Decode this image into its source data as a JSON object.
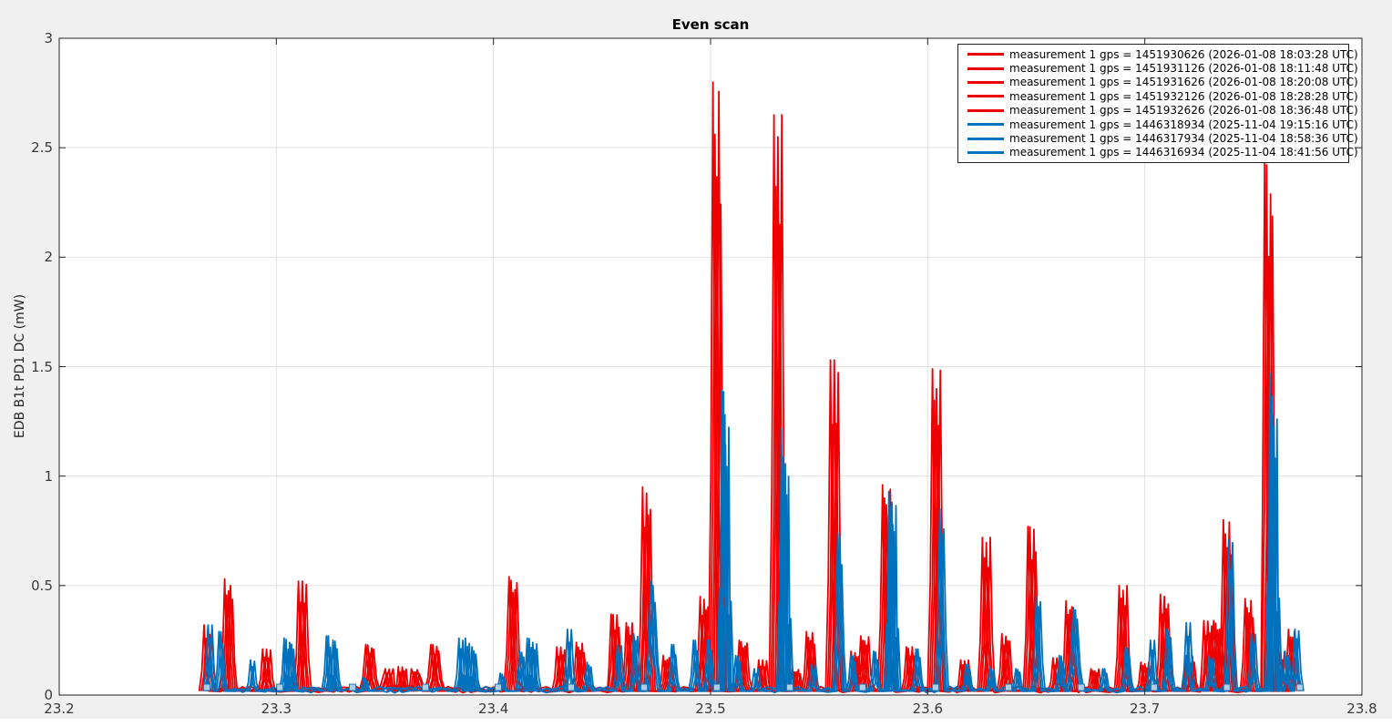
{
  "figure": {
    "title": "Even scan",
    "background": "#f0f0f0",
    "plot_background": "#ffffff",
    "grid_color": "#e2e2e2",
    "axis_color": "#262626"
  },
  "chart_data": {
    "type": "line",
    "title": "Even scan",
    "xlabel": "",
    "ylabel": "EDB B1t PD1 DC (mW)",
    "xlim": [
      23.2,
      23.8
    ],
    "ylim": [
      0,
      3
    ],
    "xticks": [
      23.2,
      23.3,
      23.4,
      23.5,
      23.6,
      23.7,
      23.8
    ],
    "xtick_labels": [
      "23.2",
      "23.3",
      "23.4",
      "23.5",
      "23.6",
      "23.7",
      "23.8"
    ],
    "yticks": [
      0,
      0.5,
      1,
      1.5,
      2,
      2.5,
      3
    ],
    "ytick_labels": [
      "0",
      "0.5",
      "1",
      "1.5",
      "2",
      "2.5",
      "3"
    ],
    "grid": true,
    "legend_position": "top-right",
    "data_x_range": [
      23.267,
      23.773
    ],
    "series_groups": [
      {
        "name": "even-scan-2026-01-08",
        "color": "#ee0000",
        "line_count": 5,
        "baseline": 0.02,
        "peaks": [
          [
            23.2685,
            0.32
          ],
          [
            23.278,
            0.53
          ],
          [
            23.2955,
            0.21
          ],
          [
            23.312,
            0.52
          ],
          [
            23.343,
            0.23,
            0.003
          ],
          [
            23.352,
            0.12,
            0.005
          ],
          [
            23.358,
            0.13,
            0.005
          ],
          [
            23.364,
            0.12,
            0.005
          ],
          [
            23.373,
            0.23,
            0.003
          ],
          [
            23.409,
            0.54,
            0.0025
          ],
          [
            23.431,
            0.22
          ],
          [
            23.44,
            0.24
          ],
          [
            23.456,
            0.37
          ],
          [
            23.463,
            0.33
          ],
          [
            23.4705,
            0.95
          ],
          [
            23.48,
            0.18
          ],
          [
            23.497,
            0.45
          ],
          [
            23.5029,
            2.8
          ],
          [
            23.515,
            0.25
          ],
          [
            23.524,
            0.16
          ],
          [
            23.531,
            2.65
          ],
          [
            23.5395,
            0.12
          ],
          [
            23.546,
            0.29
          ],
          [
            23.557,
            1.53
          ],
          [
            23.5665,
            0.2
          ],
          [
            23.571,
            0.27
          ],
          [
            23.581,
            0.96
          ],
          [
            23.592,
            0.22
          ],
          [
            23.604,
            1.49
          ],
          [
            23.617,
            0.16
          ],
          [
            23.627,
            0.72
          ],
          [
            23.636,
            0.28
          ],
          [
            23.648,
            0.77
          ],
          [
            23.6595,
            0.17
          ],
          [
            23.6655,
            0.43
          ],
          [
            23.677,
            0.12
          ],
          [
            23.69,
            0.5
          ],
          [
            23.7,
            0.15
          ],
          [
            23.709,
            0.46
          ],
          [
            23.721,
            0.18
          ],
          [
            23.729,
            0.34
          ],
          [
            23.7335,
            0.34
          ],
          [
            23.738,
            0.8
          ],
          [
            23.748,
            0.44
          ],
          [
            23.757,
            2.43
          ],
          [
            23.7625,
            0.2
          ],
          [
            23.768,
            0.3
          ]
        ]
      },
      {
        "name": "even-scan-2025-11-04",
        "color": "#0072bd",
        "line_count": 3,
        "baseline": 0.02,
        "peaks": [
          [
            23.2695,
            0.32
          ],
          [
            23.2745,
            0.29
          ],
          [
            23.289,
            0.16
          ],
          [
            23.3045,
            0.26
          ],
          [
            23.307,
            0.24
          ],
          [
            23.324,
            0.27
          ],
          [
            23.327,
            0.25
          ],
          [
            23.341,
            0.08
          ],
          [
            23.385,
            0.26
          ],
          [
            23.388,
            0.26
          ],
          [
            23.391,
            0.22
          ],
          [
            23.404,
            0.1
          ],
          [
            23.413,
            0.2
          ],
          [
            23.4165,
            0.26
          ],
          [
            23.419,
            0.24
          ],
          [
            23.435,
            0.3
          ],
          [
            23.444,
            0.15
          ],
          [
            23.458,
            0.23
          ],
          [
            23.4655,
            0.28
          ],
          [
            23.4735,
            0.52,
            0.003
          ],
          [
            23.483,
            0.23
          ],
          [
            23.493,
            0.25
          ],
          [
            23.4995,
            0.25
          ],
          [
            23.506,
            1.39
          ],
          [
            23.5075,
            1.28
          ],
          [
            23.5125,
            0.18
          ],
          [
            23.521,
            0.12
          ],
          [
            23.5335,
            1.22
          ],
          [
            23.535,
            1.04
          ],
          [
            23.5475,
            0.14
          ],
          [
            23.5595,
            0.74
          ],
          [
            23.5655,
            0.18
          ],
          [
            23.576,
            0.2
          ],
          [
            23.583,
            0.93
          ],
          [
            23.5845,
            0.88
          ],
          [
            23.5955,
            0.21
          ],
          [
            23.6065,
            0.85
          ],
          [
            23.6185,
            0.14
          ],
          [
            23.6295,
            0.13
          ],
          [
            23.6415,
            0.12
          ],
          [
            23.651,
            0.45
          ],
          [
            23.6615,
            0.18
          ],
          [
            23.668,
            0.4,
            0.003
          ],
          [
            23.6815,
            0.12
          ],
          [
            23.692,
            0.22
          ],
          [
            23.7035,
            0.25
          ],
          [
            23.711,
            0.3
          ],
          [
            23.72,
            0.33
          ],
          [
            23.7305,
            0.18
          ],
          [
            23.7395,
            0.71
          ],
          [
            23.75,
            0.28
          ],
          [
            23.7585,
            1.47
          ],
          [
            23.76,
            1.28
          ],
          [
            23.7655,
            0.2
          ],
          [
            23.77,
            0.3
          ]
        ]
      }
    ],
    "markers": {
      "shape": "square",
      "fill": "#aecfe8",
      "stroke": "#2277b3",
      "y": 0.035,
      "x": [
        23.268,
        23.3016,
        23.3351,
        23.3687,
        23.4022,
        23.4358,
        23.4694,
        23.5029,
        23.5365,
        23.57,
        23.6036,
        23.6372,
        23.6707,
        23.7043,
        23.7378,
        23.7714
      ]
    }
  },
  "legend": {
    "items": [
      {
        "label": "measurement 1 gps = 1451930626 (2026-01-08 18:03:28 UTC)",
        "color": "#ee0000"
      },
      {
        "label": "measurement 1 gps = 1451931126 (2026-01-08 18:11:48 UTC)",
        "color": "#ee0000"
      },
      {
        "label": "measurement 1 gps = 1451931626 (2026-01-08 18:20:08 UTC)",
        "color": "#ee0000"
      },
      {
        "label": "measurement 1 gps = 1451932126 (2026-01-08 18:28:28 UTC)",
        "color": "#ee0000"
      },
      {
        "label": "measurement 1 gps = 1451932626 (2026-01-08 18:36:48 UTC)",
        "color": "#ee0000"
      },
      {
        "label": "measurement 1 gps = 1446318934 (2025-11-04 19:15:16 UTC)",
        "color": "#0072bd"
      },
      {
        "label": "measurement 1 gps = 1446317934 (2025-11-04 18:58:36 UTC)",
        "color": "#0072bd"
      },
      {
        "label": "measurement 1 gps = 1446316934 (2025-11-04 18:41:56 UTC)",
        "color": "#0072bd"
      }
    ]
  }
}
